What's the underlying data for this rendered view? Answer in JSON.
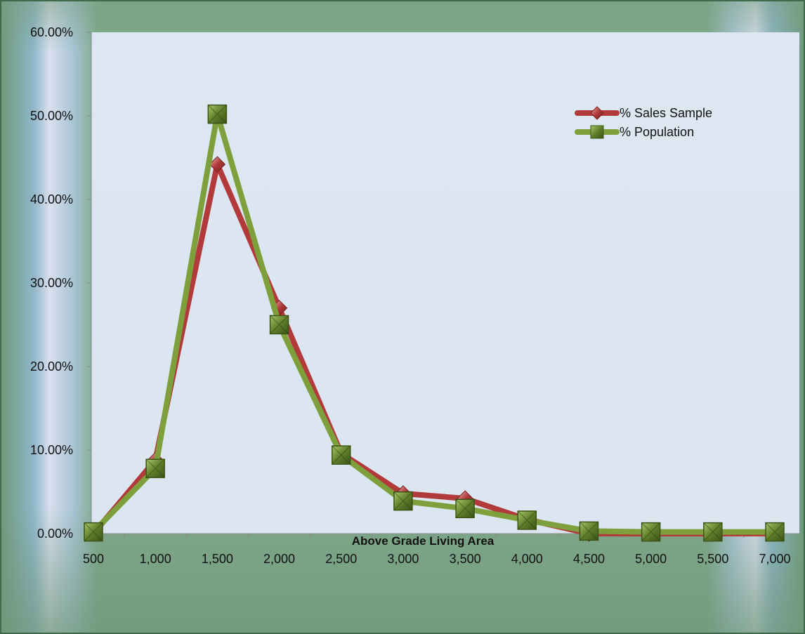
{
  "chart_data": {
    "type": "line",
    "xlabel": "Above Grade Living Area",
    "ylabel": "",
    "categories": [
      "500",
      "1,000",
      "1,500",
      "2,000",
      "2,500",
      "3,000",
      "3,500",
      "4,000",
      "4,500",
      "5,000",
      "5,500",
      "7,000"
    ],
    "y_ticks": [
      "0.00%",
      "10.00%",
      "20.00%",
      "30.00%",
      "40.00%",
      "50.00%",
      "60.00%"
    ],
    "ylim": [
      0,
      60
    ],
    "grid": false,
    "legend_position": "top-right",
    "series": [
      {
        "name": "% Sales Sample",
        "color": "#b23a3a",
        "marker": "diamond",
        "values": [
          0.0,
          8.8,
          44.2,
          27.0,
          9.6,
          4.8,
          4.2,
          1.7,
          0.0,
          0.0,
          0.0,
          0.0
        ]
      },
      {
        "name": "% Population",
        "color": "#7ea03c",
        "marker": "square",
        "values": [
          0.2,
          7.8,
          50.2,
          25.0,
          9.4,
          3.9,
          3.0,
          1.6,
          0.3,
          0.2,
          0.2,
          0.2
        ]
      }
    ]
  }
}
